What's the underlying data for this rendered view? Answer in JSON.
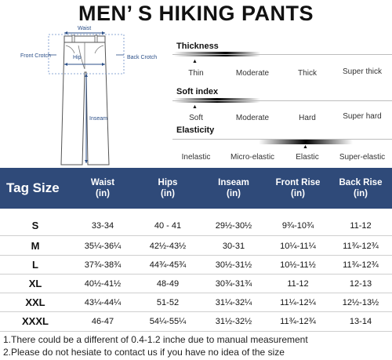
{
  "title": "MEN’ S HIKING PANTS",
  "diagram": {
    "labels": {
      "waist": "Waist",
      "front_crotch": "Front Crotch",
      "hip": "Hip",
      "back_crotch": "Back Crotch",
      "inseam": "Inseam"
    },
    "line_color": "#2b4f88"
  },
  "attributes": [
    {
      "title": "Thickness",
      "options": [
        "Thin",
        "Moderate",
        "Thick",
        "Super thick"
      ],
      "selected": "Thin"
    },
    {
      "title": "Soft index",
      "options": [
        "Soft",
        "Moderate",
        "Hard",
        "Super hard"
      ],
      "selected": "Soft"
    },
    {
      "title": "Elasticity",
      "options": [
        "Inelastic",
        "Micro-elastic",
        "Elastic",
        "Super-elastic"
      ],
      "selected": "Elastic"
    }
  ],
  "table": {
    "header_color": "#2f4a79",
    "columns": [
      "Tag Size",
      "Waist\n(in)",
      "Hips\n(in)",
      "Inseam\n(in)",
      "Front Rise\n(in)",
      "Back Rise\n(in)"
    ],
    "rows": [
      [
        "S",
        "33-34",
        "40 - 41",
        "29½-30½",
        "9¾-10¾",
        "11-12"
      ],
      [
        "M",
        "35¼-36¼",
        "42½-43½",
        "30-31",
        "10¼-11¼",
        "11¾-12¾"
      ],
      [
        "L",
        "37¾-38¾",
        "44¾-45¾",
        "30½-31½",
        "10½-11½",
        "11¾-12¾"
      ],
      [
        "XL",
        "40½-41½",
        "48-49",
        "30¾-31¾",
        "11-12",
        "12-13"
      ],
      [
        "XXL",
        "43¼-44¼",
        "51-52",
        "31¼-32¼",
        "11¼-12¼",
        "12½-13½"
      ],
      [
        "XXXL",
        "46-47",
        "54¼-55¼",
        "31½-32½",
        "11¾-12¾",
        "13-14"
      ]
    ]
  },
  "notes": [
    "1.There could be a different of 0.4-1.2 inche due to manual measurement",
    "2.Please do not hesiate to contact us if you have no idea of the size"
  ]
}
